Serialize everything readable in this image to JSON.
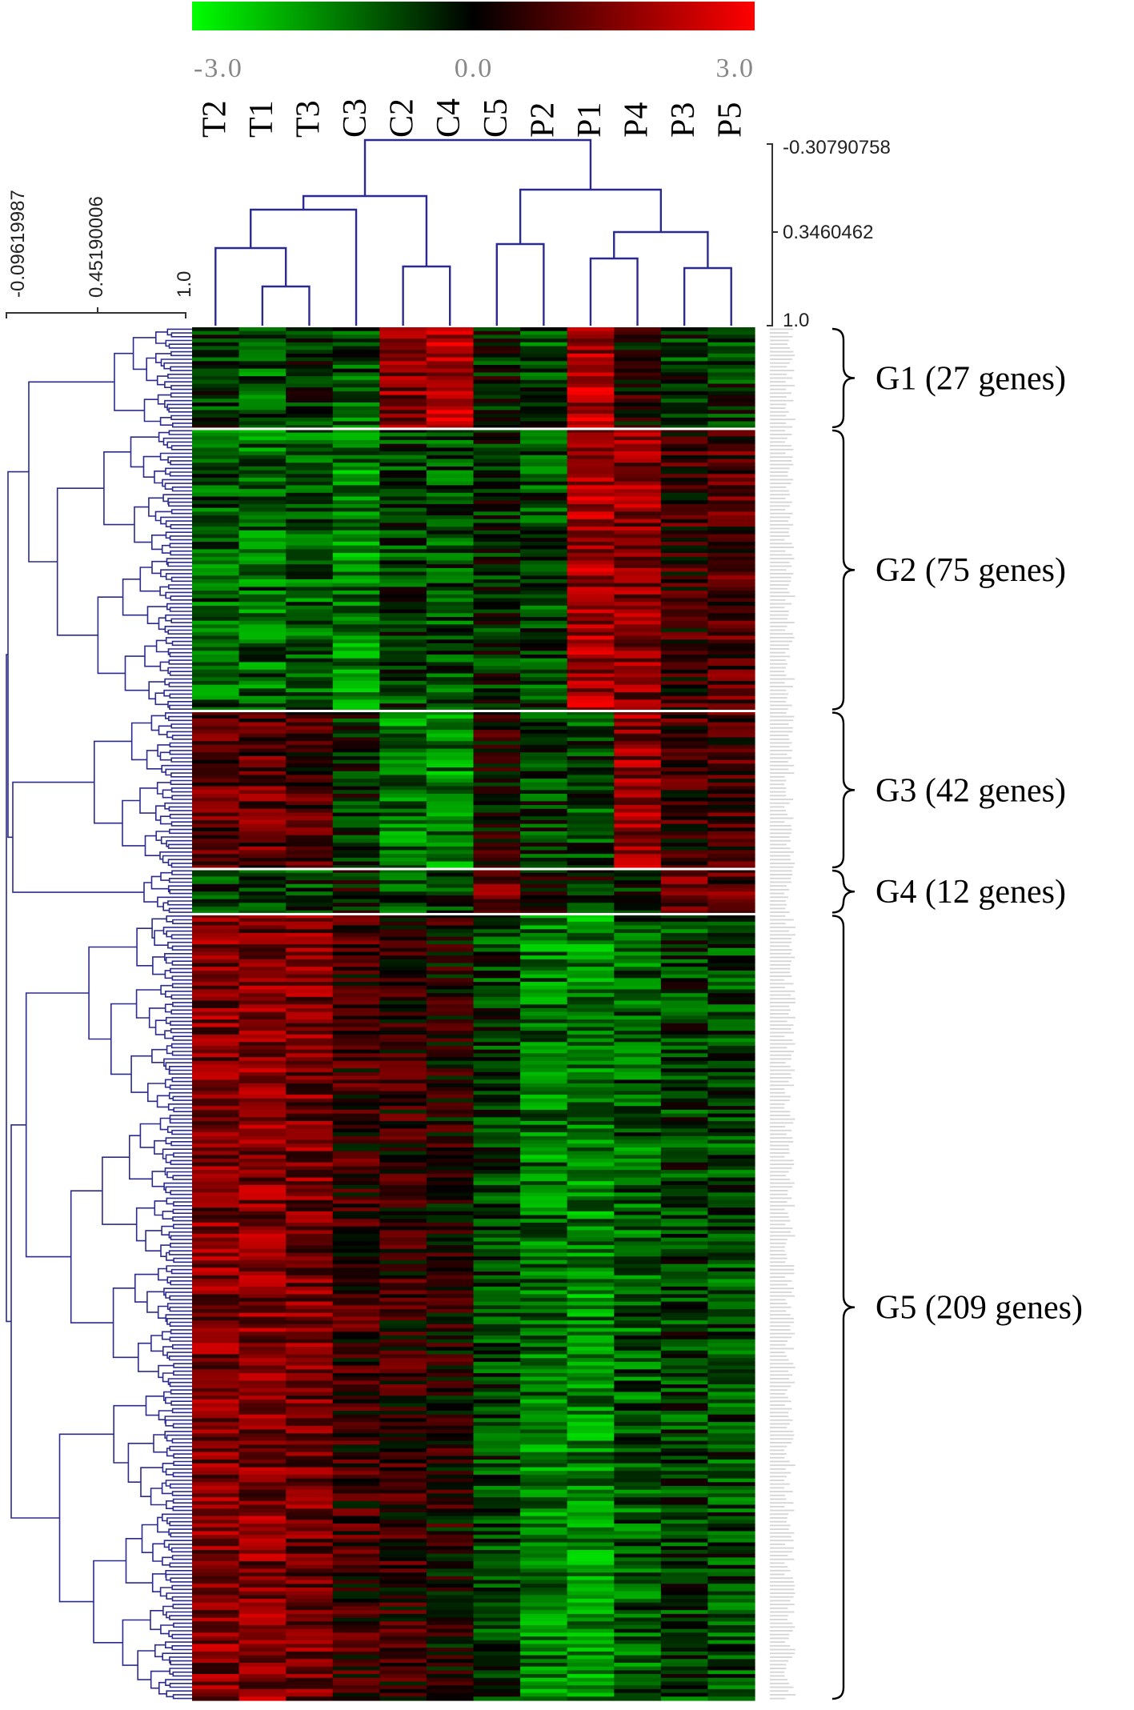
{
  "colors": {
    "low": "#00ff00",
    "mid": "#000000",
    "high": "#ff0000",
    "dendrogram": "#2b2b8f",
    "divider": "#ffffff",
    "text": "#000000"
  },
  "chart_data": {
    "type": "heatmap",
    "title": "",
    "color_scale": {
      "min": -3.0,
      "mid": 0.0,
      "max": 3.0,
      "tick_labels": [
        "-3.0",
        "0.0",
        "3.0"
      ]
    },
    "columns": [
      "T2",
      "T1",
      "T3",
      "C3",
      "C2",
      "C4",
      "C5",
      "P2",
      "P1",
      "P4",
      "P3",
      "P5"
    ],
    "column_dendrogram": {
      "scale_labels": [
        "-0.30790758",
        "0.3460462",
        "1.0"
      ]
    },
    "row_dendrogram": {
      "scale_labels": [
        "-0.09619987",
        "0.45190006",
        "1.0"
      ]
    },
    "gene_groups": [
      {
        "label": "G1 (27 genes)",
        "count": 27,
        "profile": [
          -0.6,
          -1.0,
          -0.6,
          -1.0,
          1.6,
          2.0,
          -0.3,
          -0.8,
          2.0,
          0.3,
          -0.6,
          -0.5
        ]
      },
      {
        "label": "G2 (75 genes)",
        "count": 75,
        "profile": [
          -1.1,
          -1.2,
          -1.2,
          -1.5,
          -0.7,
          -0.8,
          -0.4,
          -0.8,
          1.9,
          1.6,
          0.6,
          0.9
        ]
      },
      {
        "label": "G3 (42 genes)",
        "count": 42,
        "profile": [
          1.0,
          1.1,
          0.8,
          -0.4,
          -1.4,
          -1.6,
          0.2,
          -0.6,
          -0.8,
          1.7,
          0.6,
          0.7
        ]
      },
      {
        "label": "G4 (12 genes)",
        "count": 12,
        "profile": [
          -0.7,
          -0.4,
          -0.7,
          -0.2,
          -0.8,
          -0.6,
          1.2,
          0.2,
          -0.3,
          -0.2,
          1.1,
          1.0
        ]
      },
      {
        "label": "G5 (209 genes)",
        "count": 209,
        "profile": [
          1.5,
          1.5,
          1.4,
          0.6,
          0.5,
          0.2,
          -0.7,
          -1.4,
          -1.6,
          -1.1,
          -0.7,
          -0.8
        ]
      }
    ]
  }
}
